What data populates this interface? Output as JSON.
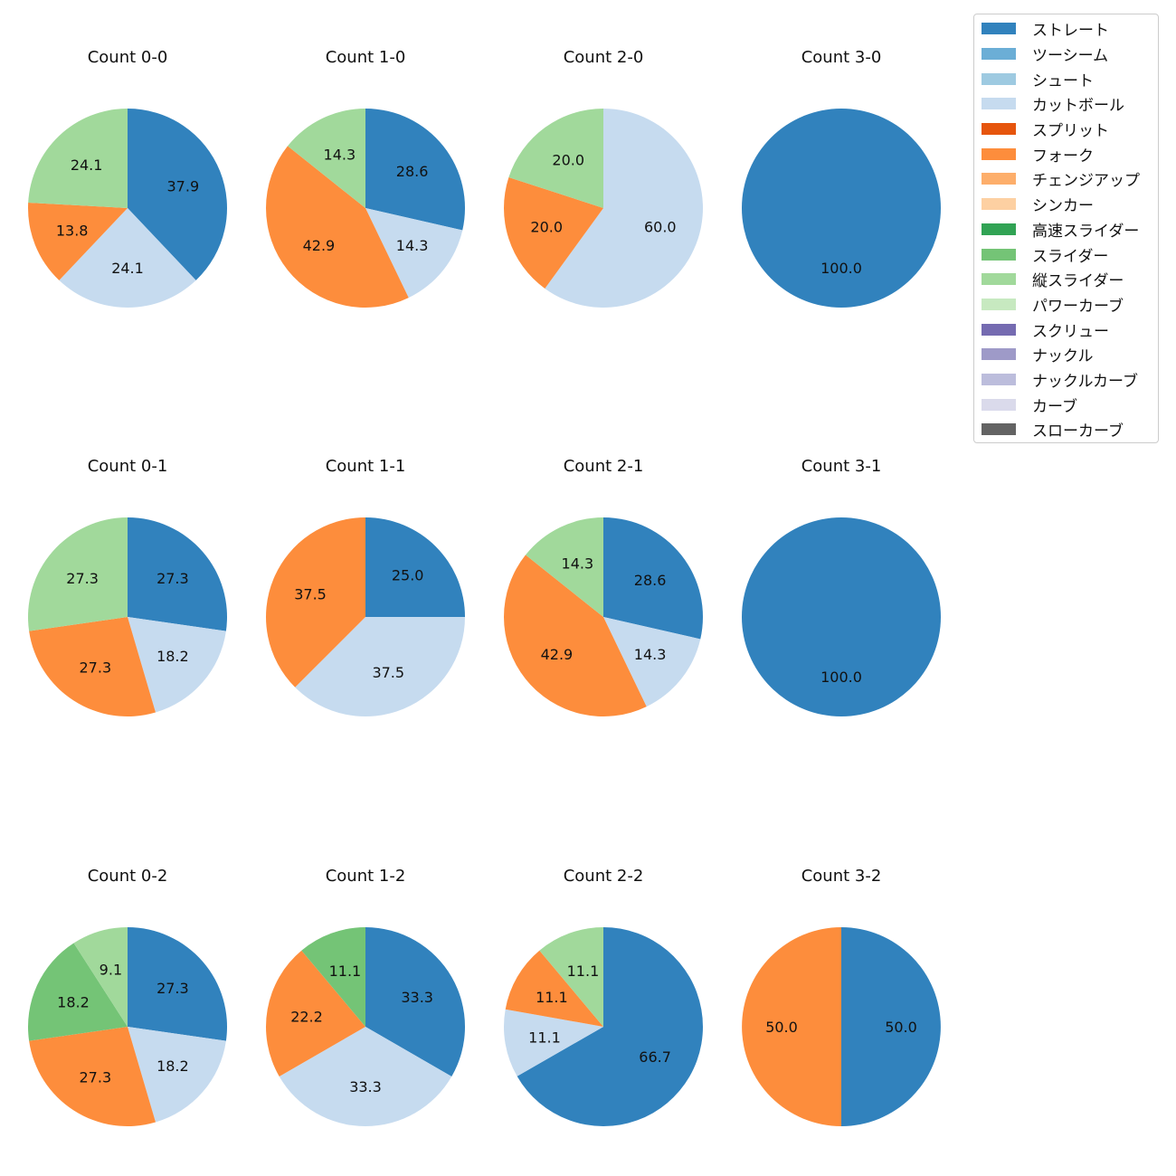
{
  "chart_data": {
    "type": "pie",
    "title": "",
    "legend_position": "top-right",
    "start_angle_deg": 90,
    "direction": "clockwise",
    "pitch_types": [
      {
        "name": "ストレート",
        "color": "#3182bd"
      },
      {
        "name": "ツーシーム",
        "color": "#6baed6"
      },
      {
        "name": "シュート",
        "color": "#9ecae1"
      },
      {
        "name": "カットボール",
        "color": "#c6dbef"
      },
      {
        "name": "スプリット",
        "color": "#e6550d"
      },
      {
        "name": "フォーク",
        "color": "#fd8d3c"
      },
      {
        "name": "チェンジアップ",
        "color": "#fdae6b"
      },
      {
        "name": "シンカー",
        "color": "#fdd0a2"
      },
      {
        "name": "高速スライダー",
        "color": "#31a354"
      },
      {
        "name": "スライダー",
        "color": "#74c476"
      },
      {
        "name": "縦スライダー",
        "color": "#a1d99b"
      },
      {
        "name": "パワーカーブ",
        "color": "#c7e9c0"
      },
      {
        "name": "スクリュー",
        "color": "#756bb1"
      },
      {
        "name": "ナックル",
        "color": "#9e9ac8"
      },
      {
        "name": "ナックルカーブ",
        "color": "#bcbddc"
      },
      {
        "name": "カーブ",
        "color": "#dadaeb"
      },
      {
        "name": "スローカーブ",
        "color": "#636363"
      }
    ],
    "charts": [
      {
        "title": "Count 0-0",
        "slices": [
          {
            "type": "ストレート",
            "value": 37.9
          },
          {
            "type": "カットボール",
            "value": 24.1
          },
          {
            "type": "フォーク",
            "value": 13.8
          },
          {
            "type": "縦スライダー",
            "value": 24.1
          }
        ]
      },
      {
        "title": "Count 1-0",
        "slices": [
          {
            "type": "ストレート",
            "value": 28.6
          },
          {
            "type": "カットボール",
            "value": 14.3
          },
          {
            "type": "フォーク",
            "value": 42.9
          },
          {
            "type": "縦スライダー",
            "value": 14.3
          }
        ]
      },
      {
        "title": "Count 2-0",
        "slices": [
          {
            "type": "カットボール",
            "value": 60.0
          },
          {
            "type": "フォーク",
            "value": 20.0
          },
          {
            "type": "縦スライダー",
            "value": 20.0
          }
        ]
      },
      {
        "title": "Count 3-0",
        "slices": [
          {
            "type": "ストレート",
            "value": 100.0
          }
        ]
      },
      {
        "title": "Count 0-1",
        "slices": [
          {
            "type": "ストレート",
            "value": 27.3
          },
          {
            "type": "カットボール",
            "value": 18.2
          },
          {
            "type": "フォーク",
            "value": 27.3
          },
          {
            "type": "縦スライダー",
            "value": 27.3
          }
        ]
      },
      {
        "title": "Count 1-1",
        "slices": [
          {
            "type": "ストレート",
            "value": 25.0
          },
          {
            "type": "カットボール",
            "value": 37.5
          },
          {
            "type": "フォーク",
            "value": 37.5
          }
        ]
      },
      {
        "title": "Count 2-1",
        "slices": [
          {
            "type": "ストレート",
            "value": 28.6
          },
          {
            "type": "カットボール",
            "value": 14.3
          },
          {
            "type": "フォーク",
            "value": 42.9
          },
          {
            "type": "縦スライダー",
            "value": 14.3
          }
        ]
      },
      {
        "title": "Count 3-1",
        "slices": [
          {
            "type": "ストレート",
            "value": 100.0
          }
        ]
      },
      {
        "title": "Count 0-2",
        "slices": [
          {
            "type": "ストレート",
            "value": 27.3
          },
          {
            "type": "カットボール",
            "value": 18.2
          },
          {
            "type": "フォーク",
            "value": 27.3
          },
          {
            "type": "スライダー",
            "value": 18.2
          },
          {
            "type": "縦スライダー",
            "value": 9.1
          }
        ]
      },
      {
        "title": "Count 1-2",
        "slices": [
          {
            "type": "ストレート",
            "value": 33.3
          },
          {
            "type": "カットボール",
            "value": 33.3
          },
          {
            "type": "フォーク",
            "value": 22.2
          },
          {
            "type": "スライダー",
            "value": 11.1
          }
        ]
      },
      {
        "title": "Count 2-2",
        "slices": [
          {
            "type": "ストレート",
            "value": 66.7
          },
          {
            "type": "カットボール",
            "value": 11.1
          },
          {
            "type": "フォーク",
            "value": 11.1
          },
          {
            "type": "縦スライダー",
            "value": 11.1
          }
        ]
      },
      {
        "title": "Count 3-2",
        "slices": [
          {
            "type": "ストレート",
            "value": 50.0
          },
          {
            "type": "フォーク",
            "value": 50.0
          }
        ]
      }
    ]
  }
}
